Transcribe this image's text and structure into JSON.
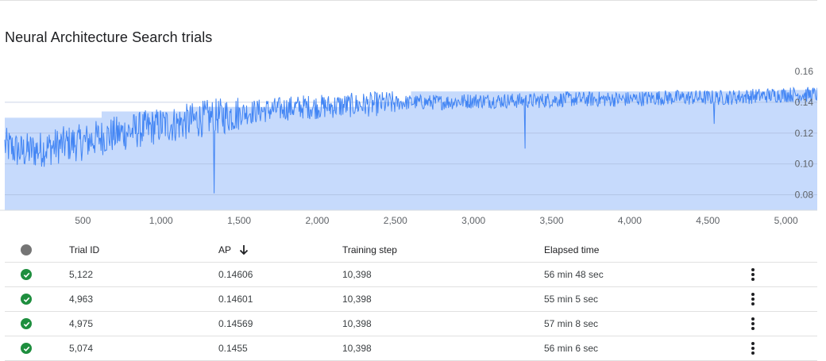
{
  "page": {
    "title": "Neural Architecture Search trials"
  },
  "colors": {
    "accent": "#4285f4",
    "fill": "#c6dafc",
    "success": "#1e8e3e",
    "status_header": "#757575"
  },
  "chart_data": {
    "type": "line",
    "title": "",
    "xlabel": "",
    "ylabel": "",
    "xlim": [
      0,
      5200
    ],
    "ylim": [
      0.07,
      0.16
    ],
    "x_ticks": [
      500,
      1000,
      1500,
      2000,
      2500,
      3000,
      3500,
      4000,
      4500,
      5000
    ],
    "x_tick_labels": [
      "500",
      "1,000",
      "1,500",
      "2,000",
      "2,500",
      "3,000",
      "3,500",
      "4,000",
      "4,500",
      "5,000"
    ],
    "y_ticks": [
      0.08,
      0.1,
      0.12,
      0.14,
      0.16
    ],
    "y_tick_labels": [
      "0.08",
      "0.10",
      "0.12",
      "0.14",
      "0.16"
    ],
    "grid": true,
    "legend": "none",
    "series": [
      {
        "values_description_points": [
          [
            0,
            0.112
          ],
          [
            100,
            0.108
          ],
          [
            200,
            0.109
          ],
          [
            300,
            0.111
          ],
          [
            400,
            0.113
          ],
          [
            500,
            0.114
          ],
          [
            600,
            0.117
          ],
          [
            700,
            0.119
          ],
          [
            800,
            0.121
          ],
          [
            900,
            0.123
          ],
          [
            1000,
            0.125
          ],
          [
            1100,
            0.126
          ],
          [
            1200,
            0.128
          ],
          [
            1300,
            0.13
          ],
          [
            1400,
            0.131
          ],
          [
            1500,
            0.133
          ],
          [
            1600,
            0.134
          ],
          [
            1700,
            0.135
          ],
          [
            1800,
            0.136
          ],
          [
            1900,
            0.137
          ],
          [
            2000,
            0.137
          ],
          [
            2200,
            0.138
          ],
          [
            2400,
            0.139
          ],
          [
            2600,
            0.14
          ],
          [
            2800,
            0.14
          ],
          [
            3000,
            0.141
          ],
          [
            3200,
            0.141
          ],
          [
            3400,
            0.141
          ],
          [
            3600,
            0.142
          ],
          [
            3800,
            0.142
          ],
          [
            4000,
            0.142
          ],
          [
            4200,
            0.143
          ],
          [
            4400,
            0.143
          ],
          [
            4600,
            0.143
          ],
          [
            4800,
            0.144
          ],
          [
            5000,
            0.145
          ],
          [
            5200,
            0.145
          ]
        ],
        "spikes": [
          [
            1340,
            0.081
          ],
          [
            3330,
            0.11
          ],
          [
            4540,
            0.126
          ]
        ],
        "best_so_far_steps": [
          [
            0,
            0.13
          ],
          [
            620,
            0.134
          ],
          [
            1180,
            0.137
          ],
          [
            2350,
            0.14
          ],
          [
            2600,
            0.147
          ],
          [
            4950,
            0.148
          ]
        ]
      }
    ]
  },
  "table": {
    "headers": {
      "trial_id": "Trial ID",
      "ap": "AP",
      "training_step": "Training step",
      "elapsed_time": "Elapsed time"
    },
    "rows": [
      {
        "trial_id": "5,122",
        "ap": "0.14606",
        "training_step": "10,398",
        "elapsed_time": "56 min 48 sec"
      },
      {
        "trial_id": "4,963",
        "ap": "0.14601",
        "training_step": "10,398",
        "elapsed_time": "55 min 5 sec"
      },
      {
        "trial_id": "4,975",
        "ap": "0.14569",
        "training_step": "10,398",
        "elapsed_time": "57 min 8 sec"
      },
      {
        "trial_id": "5,074",
        "ap": "0.1455",
        "training_step": "10,398",
        "elapsed_time": "56 min 6 sec"
      }
    ]
  }
}
